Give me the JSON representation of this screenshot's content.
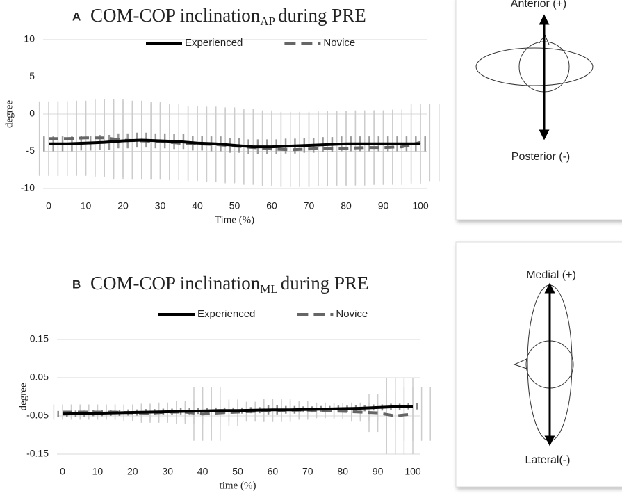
{
  "chart_data": [
    {
      "type": "line",
      "panel": "A",
      "title": "COM-COP inclination",
      "title_subscript": "AP",
      "title_suffix": "during PRE",
      "x_label": "Time (%)",
      "y_label": "degree",
      "x": [
        0,
        5,
        10,
        15,
        20,
        25,
        30,
        35,
        40,
        45,
        50,
        55,
        60,
        65,
        70,
        75,
        80,
        85,
        90,
        95,
        100
      ],
      "xlim": [
        0,
        100
      ],
      "xticks": [
        0,
        10,
        20,
        30,
        40,
        50,
        60,
        70,
        80,
        90,
        100
      ],
      "ylim": [
        -10,
        10
      ],
      "yticks": [
        -10,
        -5,
        0,
        5,
        10
      ],
      "grid": true,
      "series": [
        {
          "name": "Experienced",
          "color": "#000000",
          "dashed": false,
          "error_color": "#999999",
          "values": [
            -4,
            -4,
            -3.9,
            -3.8,
            -3.6,
            -3.5,
            -3.6,
            -3.7,
            -3.9,
            -4,
            -4.2,
            -4.4,
            -4.4,
            -4.3,
            -4.2,
            -4.1,
            -4,
            -4,
            -4,
            -4,
            -4
          ],
          "errors": [
            1,
            1,
            1,
            1,
            1,
            1,
            1,
            1,
            1,
            1,
            1,
            1,
            1,
            1,
            1,
            1,
            1,
            1,
            1,
            1,
            1
          ]
        },
        {
          "name": "Novice",
          "color": "#666666",
          "dashed": true,
          "error_color": "#cccccc",
          "values": [
            -3.3,
            -3.3,
            -3.2,
            -3.2,
            -3.5,
            -3.6,
            -3.7,
            -3.9,
            -4,
            -4.1,
            -4.3,
            -4.5,
            -4.7,
            -4.8,
            -4.7,
            -4.6,
            -4.6,
            -4.5,
            -4.5,
            -4.4,
            -3.8
          ],
          "errors": [
            5,
            5,
            5,
            5.2,
            5.3,
            5.2,
            5.1,
            5,
            5,
            5,
            5,
            5,
            5,
            5,
            5,
            5,
            5,
            5,
            5,
            5,
            5.2
          ]
        }
      ]
    },
    {
      "type": "line",
      "panel": "B",
      "title": "COM-COP inclination",
      "title_subscript": "ML",
      "title_suffix": "during PRE",
      "x_label": "time (%)",
      "y_label": "degree",
      "x": [
        0,
        5,
        10,
        15,
        20,
        25,
        30,
        35,
        40,
        45,
        50,
        55,
        60,
        65,
        70,
        75,
        80,
        85,
        90,
        95,
        100
      ],
      "xlim": [
        0,
        100
      ],
      "xticks": [
        0,
        10,
        20,
        30,
        40,
        50,
        60,
        70,
        80,
        90,
        100
      ],
      "ylim": [
        -0.15,
        0.15
      ],
      "yticks": [
        -0.15,
        -0.05,
        0.05,
        0.15
      ],
      "grid": true,
      "series": [
        {
          "name": "Experienced",
          "color": "#000000",
          "dashed": false,
          "error_color": "#888888",
          "values": [
            -0.045,
            -0.044,
            -0.043,
            -0.042,
            -0.041,
            -0.04,
            -0.039,
            -0.038,
            -0.037,
            -0.036,
            -0.036,
            -0.035,
            -0.034,
            -0.034,
            -0.033,
            -0.032,
            -0.031,
            -0.03,
            -0.028,
            -0.026,
            -0.025
          ],
          "errors": [
            0.008,
            0.008,
            0.008,
            0.008,
            0.008,
            0.008,
            0.008,
            0.008,
            0.008,
            0.008,
            0.008,
            0.008,
            0.012,
            0.01,
            0.008,
            0.008,
            0.008,
            0.008,
            0.008,
            0.008,
            0.008
          ]
        },
        {
          "name": "Novice",
          "color": "#666666",
          "dashed": true,
          "error_color": "#cccccc",
          "values": [
            -0.04,
            -0.04,
            -0.04,
            -0.04,
            -0.042,
            -0.043,
            -0.04,
            -0.04,
            -0.045,
            -0.042,
            -0.04,
            -0.038,
            -0.036,
            -0.035,
            -0.035,
            -0.036,
            -0.038,
            -0.04,
            -0.042,
            -0.05,
            -0.045
          ],
          "errors": [
            0.02,
            0.02,
            0.02,
            0.02,
            0.022,
            0.025,
            0.025,
            0.03,
            0.07,
            0.035,
            0.025,
            0.025,
            0.03,
            0.025,
            0.02,
            0.02,
            0.02,
            0.025,
            0.05,
            0.1,
            0.07
          ]
        }
      ]
    }
  ],
  "diagrams": [
    {
      "top_label": "Anterior (+)",
      "bottom_label": "Posterior (-)"
    },
    {
      "top_label": "Medial (+)",
      "bottom_label": "Lateral(-)"
    }
  ]
}
